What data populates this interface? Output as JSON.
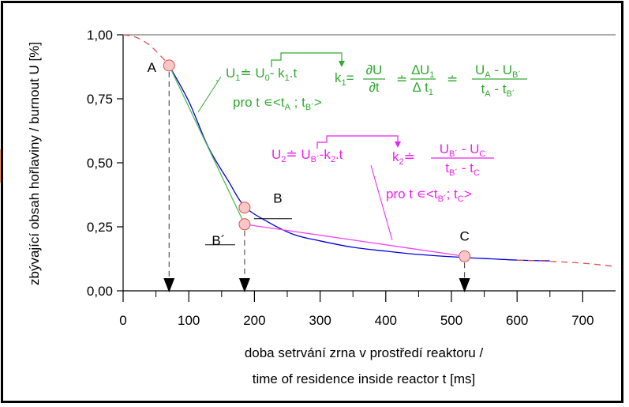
{
  "chart_data": {
    "type": "line",
    "ylabel": "zbývající obsah hořlaviny / burnout U [%]",
    "xlabel_line1": "doba setrvání zrna v prostředí reaktoru /",
    "xlabel_line2": "time of residence inside reactor t [ms]",
    "xlim": [
      0,
      750
    ],
    "ylim": [
      0,
      1.0
    ],
    "x_ticks": [
      0,
      100,
      200,
      300,
      400,
      500,
      600,
      700
    ],
    "x_tick_labels": [
      "0",
      "100",
      "200",
      "300",
      "400",
      "500",
      "600",
      "700"
    ],
    "y_ticks": [
      0,
      0.25,
      0.5,
      0.75,
      1.0
    ],
    "y_tick_labels": [
      "0,00",
      "0,25",
      "0,50",
      "0,75",
      "1,00"
    ],
    "grid": false,
    "series": [
      {
        "role": "measured",
        "color": "#0000dd",
        "x": [
          70,
          100,
          130,
          160,
          185,
          220,
          260,
          300,
          350,
          400,
          450,
          520,
          560,
          600,
          650
        ],
        "y": [
          0.88,
          0.74,
          0.56,
          0.43,
          0.33,
          0.27,
          0.22,
          0.195,
          0.17,
          0.155,
          0.142,
          0.13,
          0.125,
          0.12,
          0.117
        ]
      },
      {
        "role": "extrapolation",
        "color": "#e05050",
        "x": [
          0,
          20,
          40,
          60,
          70
        ],
        "y": [
          1.0,
          0.99,
          0.96,
          0.91,
          0.88
        ]
      },
      {
        "role": "extrapolation",
        "color": "#e05050",
        "x": [
          600,
          650,
          700,
          750
        ],
        "y": [
          0.12,
          0.115,
          0.108,
          0.095
        ]
      },
      {
        "role": "linear fit A-B'",
        "color": "#55bb55",
        "x": [
          70,
          185
        ],
        "y": [
          0.88,
          0.26
        ]
      },
      {
        "role": "linear fit B'-C",
        "color": "#ee44ee",
        "x": [
          185,
          520
        ],
        "y": [
          0.26,
          0.135
        ]
      }
    ],
    "points": [
      {
        "label": "A",
        "x": 70,
        "y": 0.88
      },
      {
        "label": "B",
        "x": 185,
        "y": 0.325
      },
      {
        "label": "B´",
        "x": 185,
        "y": 0.26
      },
      {
        "label": "C",
        "x": 520,
        "y": 0.135
      }
    ],
    "markers_x": [
      70,
      185,
      520
    ],
    "annotations": {
      "green": {
        "eq1_u": "U",
        "eq1_u_sub": "1",
        "eq1_rest": "≐ U",
        "eq1_rest_sub": "0",
        "eq1_minus": "- k",
        "eq1_k_sub": "1",
        "eq1_t": ".t",
        "cond": "pro t ∊<t",
        "cond_sub_a": "A",
        "cond_mid": " ; t",
        "cond_sub_b": "B´",
        "cond_end": ">",
        "k": "k",
        "k_sub": "1",
        "k_eq": "=",
        "partial_num": "∂U",
        "partial_den": "∂t",
        "approx": "≐",
        "delta_num": "∆U",
        "delta_num_sub": "1",
        "delta_den": "∆ t",
        "delta_den_sub": "1",
        "ratio_num": "U",
        "ratio_num_sub1": "A",
        "ratio_num_mid": " - U",
        "ratio_num_sub2": "B´",
        "ratio_den": "t",
        "ratio_den_sub1": "A",
        "ratio_den_mid": " - t",
        "ratio_den_sub2": "B´"
      },
      "magenta": {
        "eq2_u": "U",
        "eq2_u_sub": "2",
        "eq2_rest": "≐ U",
        "eq2_rest_sub": "B´",
        "eq2_minus": "-k",
        "eq2_k_sub": "2",
        "eq2_t": ".t",
        "k": "k",
        "k_sub": "2",
        "k_eq": "≐",
        "ratio_num": "U",
        "ratio_num_sub1": "B´",
        "ratio_num_mid": " - U",
        "ratio_num_sub2": "C",
        "ratio_den": "t",
        "ratio_den_sub1": "B´",
        "ratio_den_mid": " - t",
        "ratio_den_sub2": "C",
        "cond": "pro t ∊<t",
        "cond_sub_a": "B´",
        "cond_mid": "; t",
        "cond_sub_b": "C",
        "cond_end": ">"
      }
    }
  },
  "colors": {
    "axis": "#000000",
    "green": "#33aa33",
    "magenta": "#ee22ee",
    "blue": "#0000dd",
    "red_dash": "#e05050",
    "marker_fill": "#f8c8c8",
    "marker_stroke": "#e05050",
    "orange_tab": "#f0a050"
  }
}
